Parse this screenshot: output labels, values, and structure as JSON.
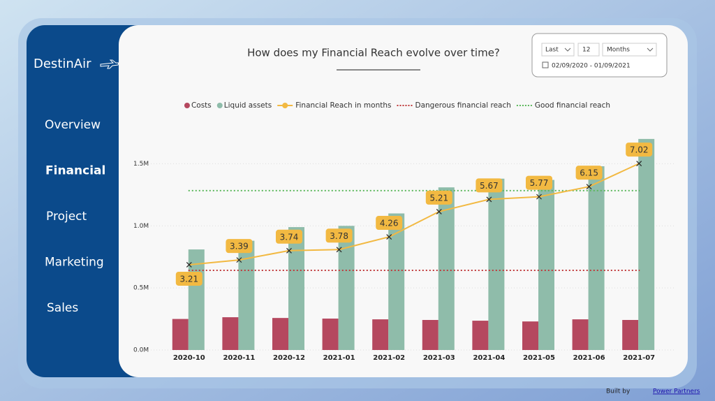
{
  "brand": "DestinAir",
  "nav": [
    "Overview",
    "Financial",
    "Project",
    "Marketing",
    "Sales"
  ],
  "filter": {
    "mode": "Last",
    "count": "12",
    "unit": "Months",
    "date_range": "02/09/2020 - 01/09/2021"
  },
  "footer": {
    "text": "Built by",
    "link": "Power Partners"
  },
  "chart_data": {
    "type": "bar",
    "title": "How does my Financial Reach evolve over time?",
    "categories": [
      "2020-10",
      "2020-11",
      "2020-12",
      "2021-01",
      "2021-02",
      "2021-03",
      "2021-04",
      "2021-05",
      "2021-06",
      "2021-07"
    ],
    "series": [
      {
        "name": "Costs",
        "color": "#b5485f",
        "values": [
          250000,
          264000,
          258000,
          253000,
          247000,
          242000,
          236000,
          230000,
          247000,
          242000
        ]
      },
      {
        "name": "Liquid assets",
        "color": "#8fbcaa",
        "values": [
          810000,
          880000,
          990000,
          1000000,
          1100000,
          1310000,
          1380000,
          1370000,
          1480000,
          1700000
        ]
      },
      {
        "name": "Financial Reach in months",
        "color": "#f2b942",
        "type": "line",
        "axis": "y2",
        "values": [
          3.21,
          3.39,
          3.74,
          3.78,
          4.26,
          5.21,
          5.67,
          5.77,
          6.15,
          7.02
        ]
      }
    ],
    "reference_lines": [
      {
        "name": "Dangerous financial reach",
        "color": "#c0393b",
        "axis": "y2",
        "value": 3
      },
      {
        "name": "Good financial reach",
        "color": "#5cb85c",
        "axis": "y2",
        "value": 6
      }
    ],
    "ylim": [
      0,
      1750000
    ],
    "yticks": [
      {
        "value": 0,
        "label": "0.0M"
      },
      {
        "value": 500000,
        "label": "0.5M"
      },
      {
        "value": 1000000,
        "label": "1.0M"
      },
      {
        "value": 1500000,
        "label": "1.5M"
      }
    ],
    "y2lim": [
      0,
      8.18
    ],
    "grid": true
  }
}
